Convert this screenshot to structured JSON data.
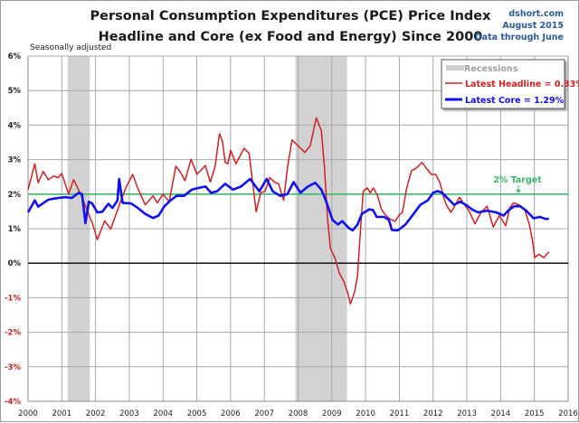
{
  "chart_data": {
    "type": "line",
    "title": "Personal Consumption Expenditures (PCE) Price Index",
    "subtitle": "Headline and Core (ex Food and Energy) Since 2000",
    "source_lines": [
      "dshort.com",
      "August 2015",
      "Data through June"
    ],
    "note": "Seasonally adjusted",
    "xlim": [
      2000,
      2016
    ],
    "ylim": [
      -4,
      6
    ],
    "x_ticks": [
      "2000",
      "2001",
      "2002",
      "2003",
      "2004",
      "2005",
      "2006",
      "2007",
      "2008",
      "2009",
      "2010",
      "2011",
      "2012",
      "2013",
      "2014",
      "2015",
      "2016"
    ],
    "y_ticks": [
      "6%",
      "5%",
      "4%",
      "3%",
      "2%",
      "1%",
      "0%",
      "-1%",
      "-2%",
      "-3%",
      "-4%"
    ],
    "grid": true,
    "legend_position": "top-right",
    "legend": {
      "recessions": "Recessions",
      "headline": "Latest Headline = 0.33%",
      "core": "Latest Core = 1.29%"
    },
    "recessions": [
      [
        2001.17,
        2001.83
      ],
      [
        2007.92,
        2009.45
      ]
    ],
    "target": {
      "value": 2,
      "label": "2% Target",
      "color": "#3cb86a"
    },
    "series": [
      {
        "key": "headline",
        "color": "#d42020",
        "points": [
          [
            2000.0,
            2.13
          ],
          [
            2000.2,
            2.88
          ],
          [
            2000.3,
            2.33
          ],
          [
            2000.45,
            2.66
          ],
          [
            2000.6,
            2.42
          ],
          [
            2000.76,
            2.52
          ],
          [
            2000.9,
            2.48
          ],
          [
            2001.0,
            2.6
          ],
          [
            2001.2,
            2.0
          ],
          [
            2001.35,
            2.42
          ],
          [
            2001.45,
            2.22
          ],
          [
            2001.56,
            2.0
          ],
          [
            2001.74,
            1.56
          ],
          [
            2001.92,
            1.12
          ],
          [
            2002.05,
            0.68
          ],
          [
            2002.27,
            1.23
          ],
          [
            2002.45,
            0.99
          ],
          [
            2002.72,
            1.73
          ],
          [
            2002.9,
            2.19
          ],
          [
            2003.1,
            2.57
          ],
          [
            2003.25,
            2.17
          ],
          [
            2003.47,
            1.69
          ],
          [
            2003.7,
            1.95
          ],
          [
            2003.83,
            1.75
          ],
          [
            2004.0,
            2.0
          ],
          [
            2004.18,
            1.78
          ],
          [
            2004.38,
            2.81
          ],
          [
            2004.5,
            2.66
          ],
          [
            2004.65,
            2.39
          ],
          [
            2004.83,
            3.01
          ],
          [
            2005.0,
            2.57
          ],
          [
            2005.25,
            2.83
          ],
          [
            2005.4,
            2.35
          ],
          [
            2005.54,
            2.79
          ],
          [
            2005.67,
            3.75
          ],
          [
            2005.76,
            3.53
          ],
          [
            2005.84,
            2.92
          ],
          [
            2005.92,
            2.88
          ],
          [
            2006.0,
            3.27
          ],
          [
            2006.16,
            2.88
          ],
          [
            2006.4,
            3.33
          ],
          [
            2006.55,
            3.18
          ],
          [
            2006.62,
            2.61
          ],
          [
            2006.76,
            1.49
          ],
          [
            2006.89,
            2.04
          ],
          [
            2007.02,
            2.08
          ],
          [
            2007.16,
            2.48
          ],
          [
            2007.3,
            2.35
          ],
          [
            2007.42,
            2.3
          ],
          [
            2007.57,
            1.82
          ],
          [
            2007.69,
            2.79
          ],
          [
            2007.82,
            3.57
          ],
          [
            2008.0,
            3.4
          ],
          [
            2008.2,
            3.21
          ],
          [
            2008.36,
            3.4
          ],
          [
            2008.54,
            4.21
          ],
          [
            2008.69,
            3.84
          ],
          [
            2008.78,
            2.79
          ],
          [
            2008.87,
            1.3
          ],
          [
            2008.96,
            0.42
          ],
          [
            2009.09,
            0.16
          ],
          [
            2009.22,
            -0.28
          ],
          [
            2009.36,
            -0.54
          ],
          [
            2009.47,
            -0.85
          ],
          [
            2009.55,
            -1.18
          ],
          [
            2009.67,
            -0.85
          ],
          [
            2009.76,
            -0.37
          ],
          [
            2009.84,
            0.86
          ],
          [
            2009.93,
            2.09
          ],
          [
            2010.05,
            2.18
          ],
          [
            2010.14,
            2.04
          ],
          [
            2010.23,
            2.18
          ],
          [
            2010.35,
            1.96
          ],
          [
            2010.47,
            1.56
          ],
          [
            2010.56,
            1.43
          ],
          [
            2010.69,
            1.3
          ],
          [
            2010.87,
            1.21
          ],
          [
            2011.0,
            1.4
          ],
          [
            2011.09,
            1.47
          ],
          [
            2011.22,
            2.18
          ],
          [
            2011.36,
            2.68
          ],
          [
            2011.5,
            2.75
          ],
          [
            2011.67,
            2.92
          ],
          [
            2011.8,
            2.75
          ],
          [
            2011.95,
            2.57
          ],
          [
            2012.08,
            2.57
          ],
          [
            2012.21,
            2.31
          ],
          [
            2012.3,
            1.96
          ],
          [
            2012.39,
            1.69
          ],
          [
            2012.53,
            1.47
          ],
          [
            2012.66,
            1.69
          ],
          [
            2012.78,
            1.91
          ],
          [
            2012.93,
            1.69
          ],
          [
            2013.06,
            1.52
          ],
          [
            2013.24,
            1.14
          ],
          [
            2013.42,
            1.47
          ],
          [
            2013.6,
            1.65
          ],
          [
            2013.78,
            1.05
          ],
          [
            2013.96,
            1.38
          ],
          [
            2014.05,
            1.25
          ],
          [
            2014.15,
            1.08
          ],
          [
            2014.27,
            1.6
          ],
          [
            2014.38,
            1.75
          ],
          [
            2014.54,
            1.69
          ],
          [
            2014.71,
            1.56
          ],
          [
            2014.85,
            1.12
          ],
          [
            2014.94,
            0.68
          ],
          [
            2015.01,
            0.16
          ],
          [
            2015.13,
            0.26
          ],
          [
            2015.28,
            0.16
          ],
          [
            2015.43,
            0.33
          ]
        ]
      },
      {
        "key": "core",
        "color": "#1010f0",
        "points": [
          [
            2000.0,
            1.47
          ],
          [
            2000.2,
            1.82
          ],
          [
            2000.3,
            1.64
          ],
          [
            2000.6,
            1.84
          ],
          [
            2000.9,
            1.89
          ],
          [
            2001.1,
            1.91
          ],
          [
            2001.3,
            1.89
          ],
          [
            2001.5,
            2.04
          ],
          [
            2001.6,
            2.0
          ],
          [
            2001.7,
            1.16
          ],
          [
            2001.8,
            1.78
          ],
          [
            2001.9,
            1.73
          ],
          [
            2002.05,
            1.47
          ],
          [
            2002.2,
            1.49
          ],
          [
            2002.38,
            1.72
          ],
          [
            2002.5,
            1.6
          ],
          [
            2002.65,
            1.82
          ],
          [
            2002.7,
            2.44
          ],
          [
            2002.8,
            1.75
          ],
          [
            2003.05,
            1.73
          ],
          [
            2003.25,
            1.6
          ],
          [
            2003.47,
            1.43
          ],
          [
            2003.7,
            1.31
          ],
          [
            2003.87,
            1.38
          ],
          [
            2004.03,
            1.64
          ],
          [
            2004.2,
            1.8
          ],
          [
            2004.4,
            1.95
          ],
          [
            2004.62,
            1.95
          ],
          [
            2004.85,
            2.13
          ],
          [
            2005.1,
            2.19
          ],
          [
            2005.26,
            2.22
          ],
          [
            2005.42,
            2.04
          ],
          [
            2005.6,
            2.08
          ],
          [
            2005.84,
            2.3
          ],
          [
            2006.07,
            2.13
          ],
          [
            2006.31,
            2.22
          ],
          [
            2006.58,
            2.44
          ],
          [
            2006.85,
            2.08
          ],
          [
            2007.07,
            2.44
          ],
          [
            2007.25,
            2.08
          ],
          [
            2007.47,
            1.95
          ],
          [
            2007.68,
            2.0
          ],
          [
            2007.87,
            2.35
          ],
          [
            2008.07,
            2.04
          ],
          [
            2008.29,
            2.22
          ],
          [
            2008.51,
            2.33
          ],
          [
            2008.69,
            2.13
          ],
          [
            2008.82,
            1.82
          ],
          [
            2009.02,
            1.25
          ],
          [
            2009.18,
            1.12
          ],
          [
            2009.31,
            1.22
          ],
          [
            2009.49,
            1.03
          ],
          [
            2009.62,
            0.95
          ],
          [
            2009.76,
            1.12
          ],
          [
            2009.89,
            1.43
          ],
          [
            2010.11,
            1.56
          ],
          [
            2010.22,
            1.54
          ],
          [
            2010.33,
            1.34
          ],
          [
            2010.55,
            1.34
          ],
          [
            2010.69,
            1.25
          ],
          [
            2010.78,
            0.96
          ],
          [
            2010.96,
            0.95
          ],
          [
            2011.18,
            1.12
          ],
          [
            2011.4,
            1.4
          ],
          [
            2011.62,
            1.69
          ],
          [
            2011.84,
            1.82
          ],
          [
            2012.0,
            2.04
          ],
          [
            2012.13,
            2.09
          ],
          [
            2012.27,
            2.04
          ],
          [
            2012.44,
            1.87
          ],
          [
            2012.62,
            1.69
          ],
          [
            2012.8,
            1.78
          ],
          [
            2012.97,
            1.69
          ],
          [
            2013.15,
            1.56
          ],
          [
            2013.33,
            1.47
          ],
          [
            2013.6,
            1.52
          ],
          [
            2013.87,
            1.47
          ],
          [
            2014.09,
            1.38
          ],
          [
            2014.22,
            1.52
          ],
          [
            2014.4,
            1.65
          ],
          [
            2014.58,
            1.65
          ],
          [
            2014.76,
            1.52
          ],
          [
            2014.98,
            1.3
          ],
          [
            2015.16,
            1.34
          ],
          [
            2015.34,
            1.28
          ],
          [
            2015.43,
            1.29
          ]
        ]
      }
    ]
  }
}
